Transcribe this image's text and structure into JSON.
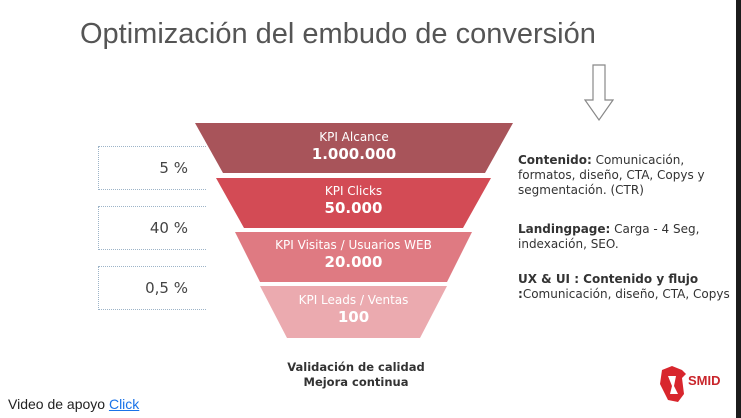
{
  "title": "Optimización del embudo de conversión",
  "funnel": {
    "stages": [
      {
        "label": "KPI Alcance",
        "value": "1.000.000",
        "color": "#a8545a"
      },
      {
        "label": "KPI Clicks",
        "value": "50.000",
        "color": "#d34b55"
      },
      {
        "label": "KPI Visitas / Usuarios WEB",
        "value": "20.000",
        "color": "#df7a82"
      },
      {
        "label": "KPI Leads / Ventas",
        "value": "100",
        "color": "#ebaaaf"
      }
    ],
    "rates": [
      "5 %",
      "40 %",
      "0,5 %"
    ]
  },
  "notes": [
    {
      "heading": "Contenido:",
      "text": " Comunicación, formatos, diseño, CTA, Copys y segmentación. (CTR)"
    },
    {
      "heading": "Landingpage:",
      "text": " Carga - 4 Seg, indexación, SEO."
    },
    {
      "heading": "UX & UI : Contenido y flujo :",
      "text": "Comunicación, diseño, CTA, Copys"
    }
  ],
  "quality": {
    "line1": "Validación de calidad",
    "line2": "Mejora continua"
  },
  "footer": {
    "text": "Video de apoyo",
    "link_label": "Click"
  },
  "logo": {
    "text": "SMID",
    "icon": "smid-logo-icon"
  },
  "arrow_icon": "down-arrow-icon"
}
